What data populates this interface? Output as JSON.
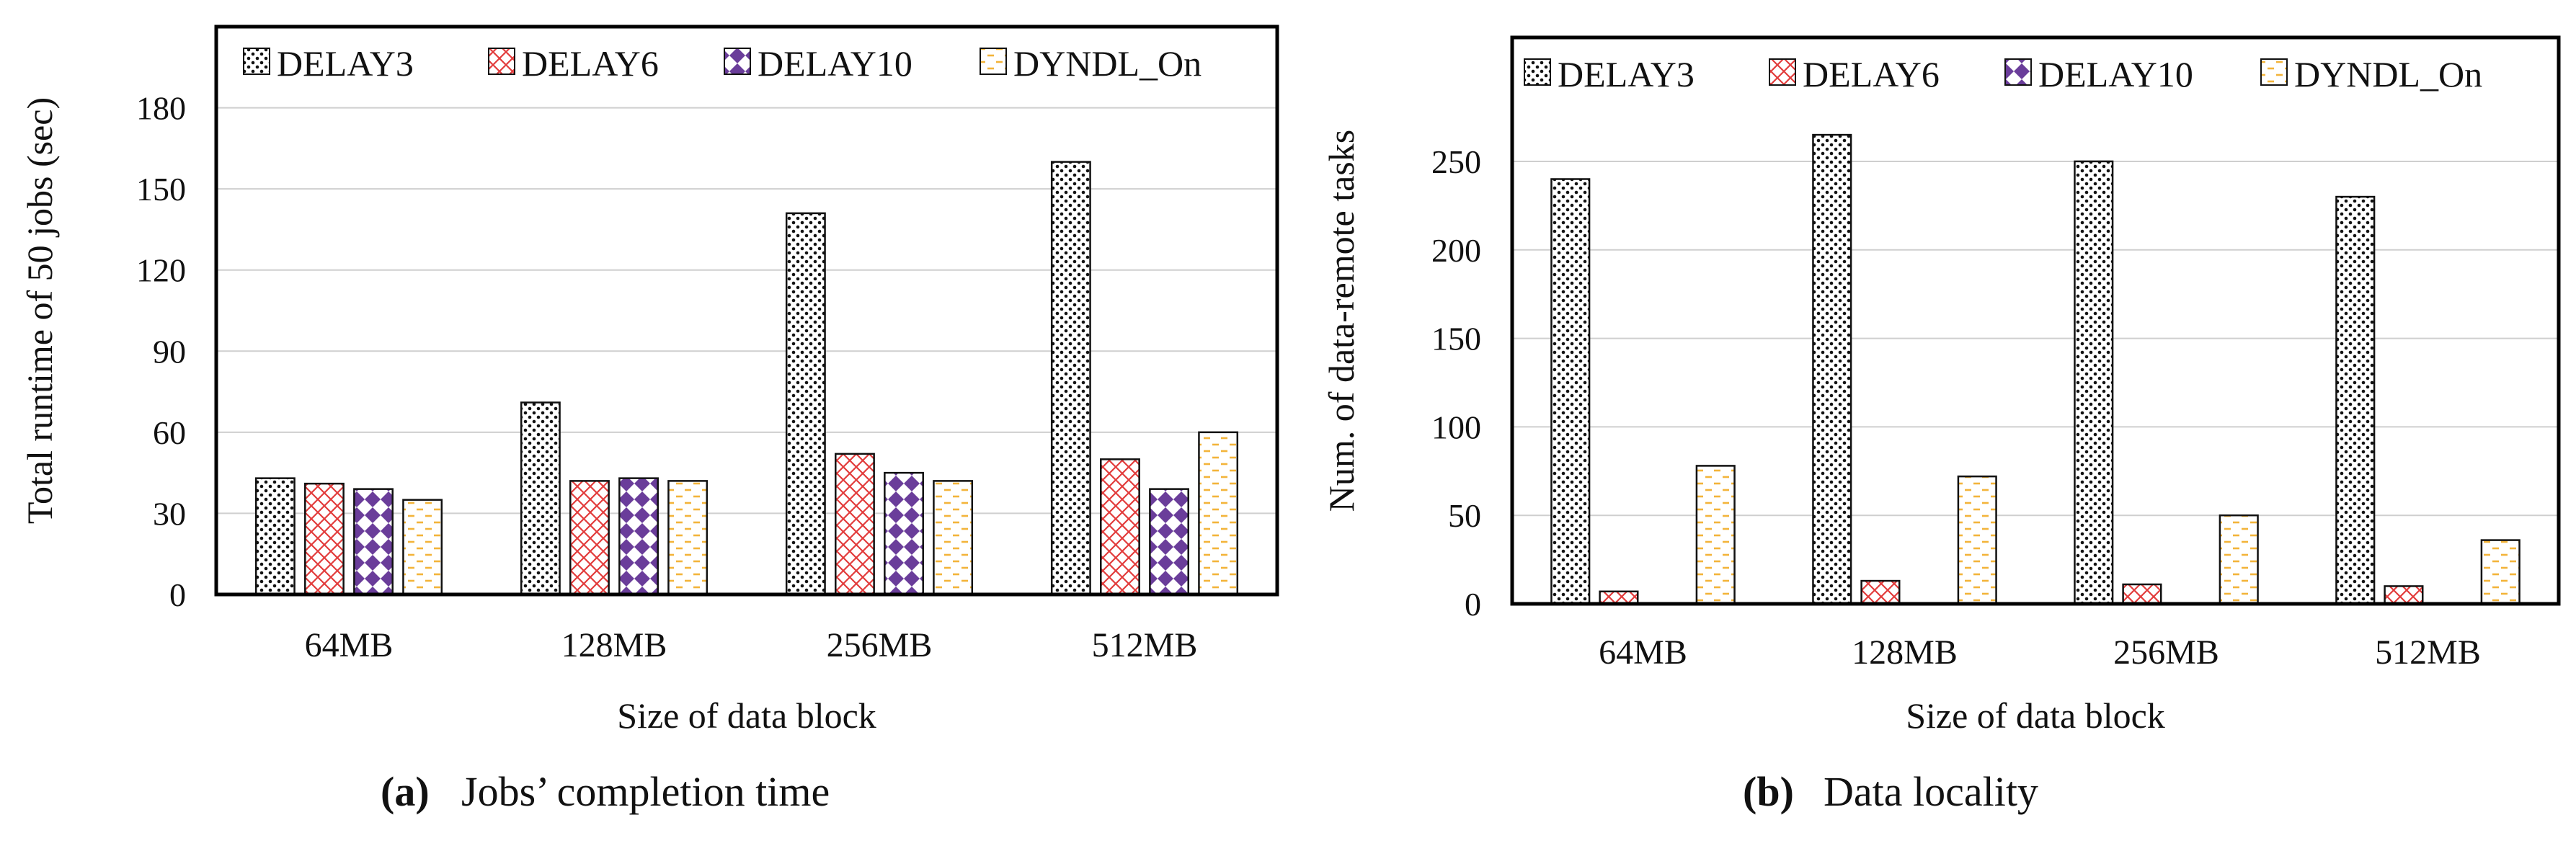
{
  "chart_data": [
    {
      "type": "bar",
      "title": "Jobs’ completion time",
      "caption_letter": "(a)",
      "xlabel": "Size of data block",
      "ylabel": "Total runtime of 50 jobs (sec)",
      "categories": [
        "64MB",
        "128MB",
        "256MB",
        "512MB"
      ],
      "ylim": [
        0,
        210
      ],
      "yticks": [
        0,
        30,
        60,
        90,
        120,
        150,
        180
      ],
      "grid": true,
      "legend_position": "top",
      "series": [
        {
          "name": "DELAY3",
          "pattern": "dots",
          "values": [
            43,
            71,
            141,
            160
          ]
        },
        {
          "name": "DELAY6",
          "pattern": "crosshatch",
          "values": [
            41,
            42,
            52,
            50
          ]
        },
        {
          "name": "DELAY10",
          "pattern": "diamond",
          "values": [
            39,
            43,
            45,
            39
          ]
        },
        {
          "name": "DYNDL_On",
          "pattern": "dashes",
          "values": [
            35,
            42,
            42,
            60
          ]
        }
      ]
    },
    {
      "type": "bar",
      "title": "Data locality",
      "caption_letter": "(b)",
      "xlabel": "Size of data block",
      "ylabel": "Num. of data-remote tasks",
      "categories": [
        "64MB",
        "128MB",
        "256MB",
        "512MB"
      ],
      "ylim": [
        0,
        320
      ],
      "yticks": [
        0,
        50,
        100,
        150,
        200,
        250
      ],
      "grid": true,
      "legend_position": "top",
      "series": [
        {
          "name": "DELAY3",
          "pattern": "dots",
          "values": [
            240,
            265,
            250,
            230
          ]
        },
        {
          "name": "DELAY6",
          "pattern": "crosshatch",
          "values": [
            7,
            13,
            11,
            10
          ]
        },
        {
          "name": "DELAY10",
          "pattern": "diamond",
          "values": [
            0,
            0,
            0,
            0
          ]
        },
        {
          "name": "DYNDL_On",
          "pattern": "dashes",
          "values": [
            78,
            72,
            50,
            36
          ]
        }
      ]
    }
  ],
  "colors": {
    "delay6": "#e23c3c",
    "delay10": "#6a3d9a",
    "dyndl": "#f3b43a",
    "grid": "#cfcfcf",
    "frame": "#000000"
  }
}
